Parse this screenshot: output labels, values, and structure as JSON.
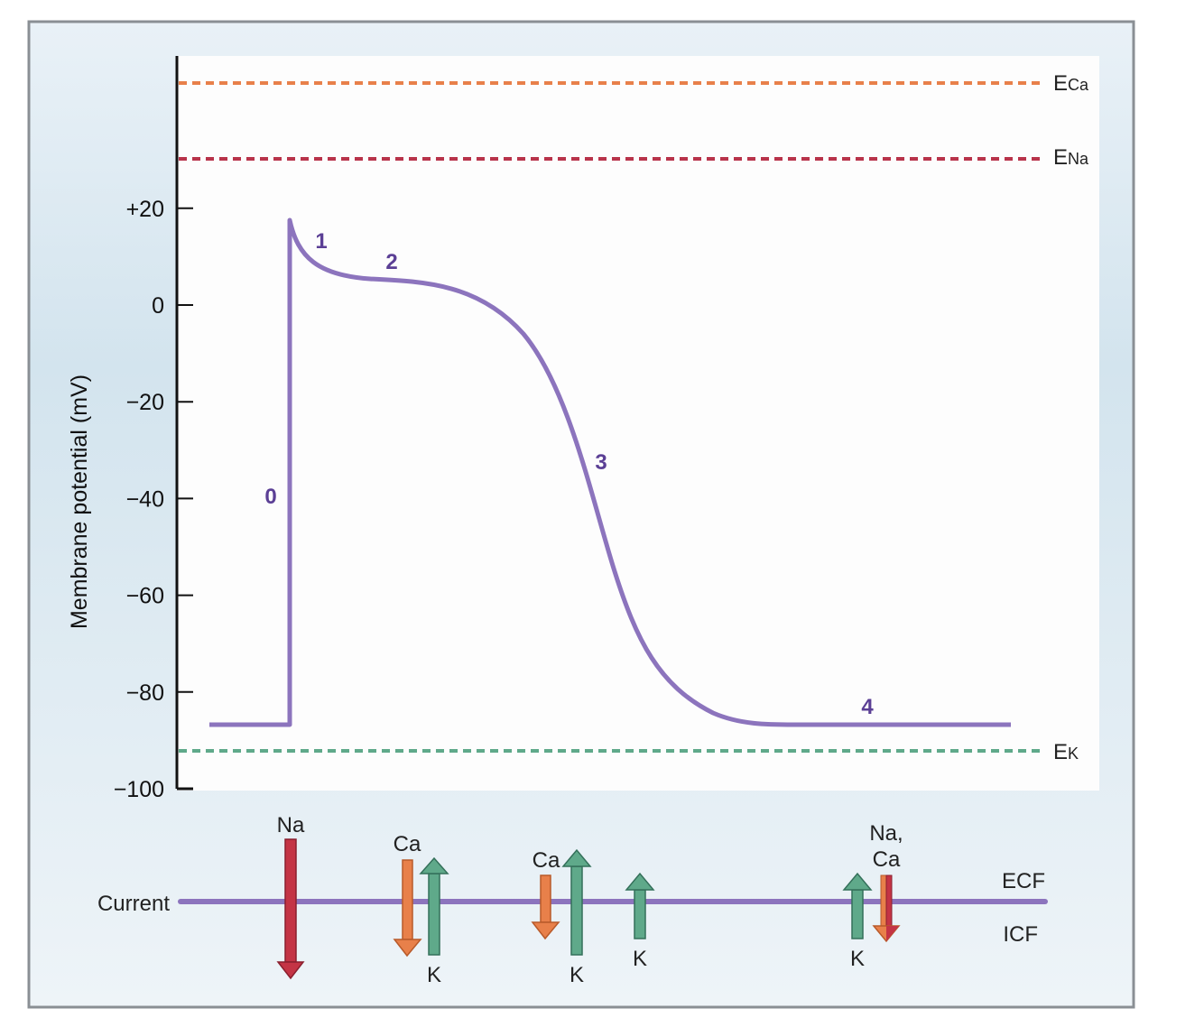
{
  "y_axis": {
    "title": "Membrane potential (mV)",
    "ticks": [
      {
        "label": "+20",
        "value": 20
      },
      {
        "label": "0",
        "value": 0
      },
      {
        "label": "−20",
        "value": -20
      },
      {
        "label": "−40",
        "value": -40
      },
      {
        "label": "−60",
        "value": -60
      },
      {
        "label": "−80",
        "value": -80
      },
      {
        "label": "−100",
        "value": -100
      }
    ]
  },
  "equilibrium_potentials": {
    "ca": {
      "prefix": "E",
      "ion": "Ca",
      "color": "#e8804a"
    },
    "na": {
      "prefix": "E",
      "ion": "Na",
      "color": "#b8334a"
    },
    "k": {
      "prefix": "E",
      "ion": "K",
      "color": "#5fa98a"
    }
  },
  "phases": {
    "p0": "0",
    "p1": "1",
    "p2": "2",
    "p3": "3",
    "p4": "4"
  },
  "curve_color": "#8c74bd",
  "phase_label_color": "#5b3f95",
  "currents": {
    "row_label": "Current",
    "ecf": "ECF",
    "icf": "ICF",
    "na_in": "Na",
    "ca_in_1": "Ca",
    "k_out_1": "K",
    "ca_in_2": "Ca",
    "k_out_2": "K",
    "k_out_3": "K",
    "k_out_4": "K",
    "naca_line1": "Na,",
    "naca_line2": "Ca"
  },
  "colors": {
    "na_current": "#c43445",
    "ca_current": "#e8804a",
    "k_current": "#5fa98a",
    "membrane_line": "#8c74bd",
    "frame_bg": "#e3edf4",
    "plot_bg": "#fdfdfd"
  }
}
